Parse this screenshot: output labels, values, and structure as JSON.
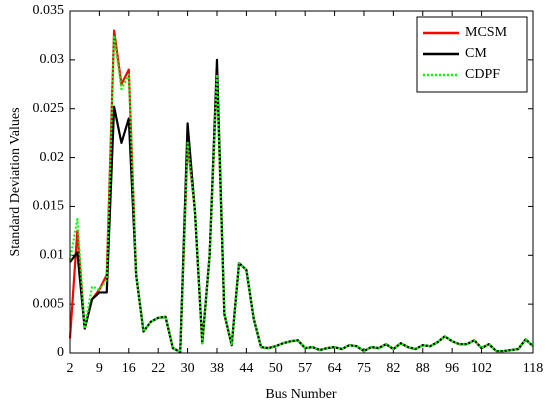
{
  "chart_data": {
    "type": "line",
    "x_label": "Bus Number",
    "y_label": "Standard Deviation Values",
    "categories": [
      "2",
      null,
      null,
      null,
      "9",
      null,
      null,
      null,
      "16",
      null,
      null,
      null,
      "22",
      null,
      null,
      null,
      "30",
      null,
      null,
      null,
      "38",
      null,
      null,
      null,
      "44",
      null,
      null,
      null,
      "50",
      null,
      null,
      null,
      "57",
      null,
      null,
      null,
      "64",
      null,
      null,
      null,
      "75",
      null,
      null,
      null,
      "82",
      null,
      null,
      null,
      "88",
      null,
      null,
      null,
      "96",
      null,
      null,
      null,
      "102",
      null,
      null,
      null,
      null,
      null,
      null,
      "118"
    ],
    "series": [
      {
        "name": "MCSM",
        "color": "#ff0000",
        "style": "solid",
        "values": [
          0.0015,
          0.0125,
          0.0025,
          0.0055,
          0.0065,
          0.008,
          0.033,
          0.0275,
          0.029,
          0.008,
          0.0022,
          0.0032,
          0.0036,
          0.0037,
          0.0005,
          0.0001,
          0.0215,
          0.0145,
          0.001,
          0.01,
          0.0285,
          0.004,
          0.0008,
          0.0092,
          0.0085,
          0.0035,
          0.0006,
          0.0005,
          0.0007,
          0.001,
          0.0012,
          0.0013,
          0.0005,
          0.0006,
          0.0003,
          0.0005,
          0.0006,
          0.0004,
          0.0008,
          0.0007,
          0.0002,
          0.0006,
          0.0005,
          0.0009,
          0.0004,
          0.001,
          0.0006,
          0.0004,
          0.0008,
          0.0007,
          0.0011,
          0.0017,
          0.0012,
          0.0009,
          0.0009,
          0.0013,
          0.0005,
          0.0009,
          0.0002,
          0.0002,
          0.0003,
          0.0004,
          0.0014,
          0.0007
        ]
      },
      {
        "name": "CM",
        "color": "#000000",
        "style": "solid",
        "values": [
          0.0093,
          0.0103,
          0.0025,
          0.0055,
          0.0062,
          0.0062,
          0.0252,
          0.0215,
          0.024,
          0.008,
          0.0022,
          0.0032,
          0.0036,
          0.0037,
          0.0005,
          0.0001,
          0.0235,
          0.0145,
          0.001,
          0.01,
          0.03,
          0.004,
          0.0008,
          0.0092,
          0.0085,
          0.0035,
          0.0006,
          0.0005,
          0.0007,
          0.001,
          0.0012,
          0.0013,
          0.0005,
          0.0006,
          0.0003,
          0.0005,
          0.0006,
          0.0004,
          0.0008,
          0.0007,
          0.0002,
          0.0006,
          0.0005,
          0.0009,
          0.0004,
          0.001,
          0.0006,
          0.0004,
          0.0008,
          0.0007,
          0.0011,
          0.0017,
          0.0012,
          0.0009,
          0.0009,
          0.0013,
          0.0005,
          0.0009,
          0.0002,
          0.0002,
          0.0003,
          0.0004,
          0.0014,
          0.0007
        ]
      },
      {
        "name": "CDPF",
        "color": "#00ff00",
        "style": "dotted",
        "values": [
          0.0095,
          0.0137,
          0.0025,
          0.0068,
          0.0065,
          0.0075,
          0.0325,
          0.027,
          0.0285,
          0.008,
          0.0022,
          0.0032,
          0.0036,
          0.0037,
          0.0005,
          0.0001,
          0.0215,
          0.0145,
          0.001,
          0.01,
          0.0285,
          0.004,
          0.0008,
          0.0092,
          0.0085,
          0.0035,
          0.0006,
          0.0005,
          0.0007,
          0.001,
          0.0012,
          0.0013,
          0.0005,
          0.0006,
          0.0003,
          0.0005,
          0.0006,
          0.0004,
          0.0008,
          0.0007,
          0.0002,
          0.0006,
          0.0005,
          0.0009,
          0.0004,
          0.001,
          0.0006,
          0.0004,
          0.0008,
          0.0007,
          0.0011,
          0.0017,
          0.0012,
          0.0009,
          0.0009,
          0.0013,
          0.0005,
          0.0009,
          0.0002,
          0.0002,
          0.0003,
          0.0004,
          0.0014,
          0.0007
        ]
      }
    ],
    "ylim": [
      0,
      0.035
    ],
    "yticks": [
      0,
      0.005,
      0.01,
      0.015,
      0.02,
      0.025,
      0.03,
      0.035
    ],
    "legend": "top-right",
    "grid": false
  }
}
